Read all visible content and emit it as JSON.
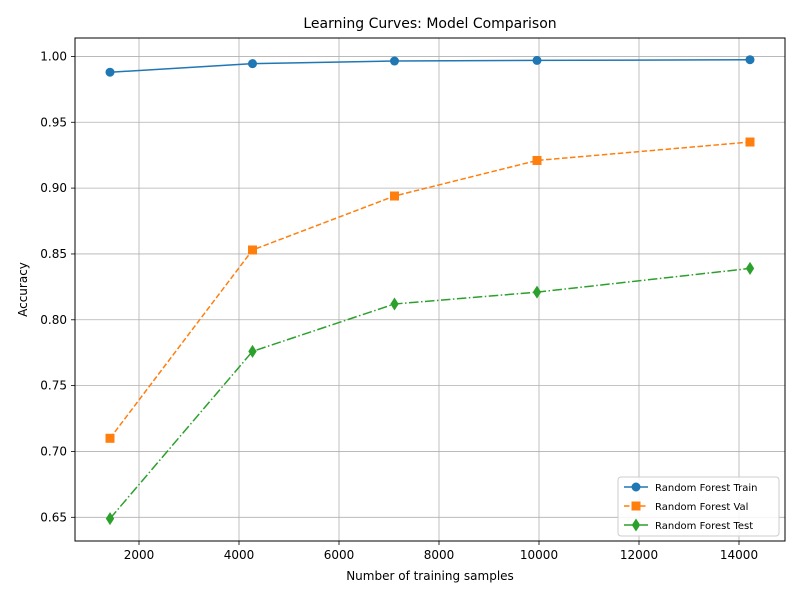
{
  "chart_data": {
    "type": "line",
    "title": "Learning Curves: Model Comparison",
    "xlabel": "Number of training samples",
    "ylabel": "Accuracy",
    "xlim": [
      720,
      14920
    ],
    "ylim": [
      0.632,
      1.014
    ],
    "x_ticks": [
      2000,
      4000,
      6000,
      8000,
      10000,
      12000,
      14000
    ],
    "y_ticks": [
      0.65,
      0.7,
      0.75,
      0.8,
      0.85,
      0.9,
      0.95,
      1.0
    ],
    "x_tick_labels": [
      "2000",
      "4000",
      "6000",
      "8000",
      "10000",
      "12000",
      "14000"
    ],
    "y_tick_labels": [
      "0.65",
      "0.70",
      "0.75",
      "0.80",
      "0.85",
      "0.90",
      "0.95",
      "1.00"
    ],
    "grid": true,
    "legend_position": "lower-right",
    "x": [
      1420,
      4270,
      7110,
      9960,
      14220
    ],
    "series": [
      {
        "name": "Random Forest Train",
        "values": [
          0.988,
          0.9945,
          0.9965,
          0.997,
          0.9975
        ],
        "color": "#1f77b4",
        "marker": "circle",
        "linestyle": "solid"
      },
      {
        "name": "Random Forest Val",
        "values": [
          0.71,
          0.853,
          0.894,
          0.921,
          0.935
        ],
        "color": "#ff7f0e",
        "marker": "square",
        "linestyle": "dashed"
      },
      {
        "name": "Random Forest Test",
        "values": [
          0.649,
          0.776,
          0.812,
          0.821,
          0.839
        ],
        "color": "#2ca02c",
        "marker": "diamond",
        "linestyle": "dashdot"
      }
    ]
  }
}
